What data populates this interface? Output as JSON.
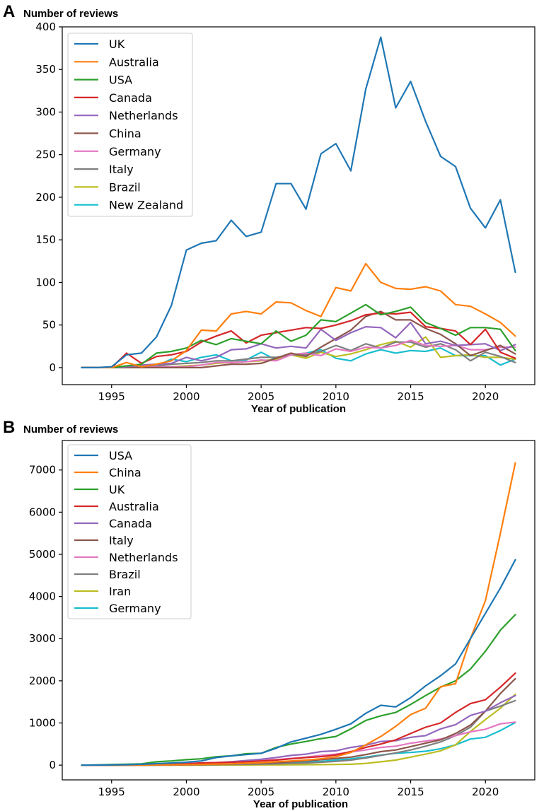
{
  "chart_data": [
    {
      "type": "line",
      "panel_letter": "A",
      "title": "",
      "ylabel": "Number of reviews",
      "xlabel": "Year of publication",
      "xlim": [
        1991.7,
        2023.3
      ],
      "ylim": [
        -20,
        400
      ],
      "xticks": [
        1995,
        2000,
        2005,
        2010,
        2015,
        2020
      ],
      "yticks": [
        0,
        50,
        100,
        150,
        200,
        250,
        300,
        350,
        400
      ],
      "legend_position": "top-left",
      "x": [
        1993,
        1994,
        1995,
        1996,
        1997,
        1998,
        1999,
        2000,
        2001,
        2002,
        2003,
        2004,
        2005,
        2006,
        2007,
        2008,
        2009,
        2010,
        2011,
        2012,
        2013,
        2014,
        2015,
        2016,
        2017,
        2018,
        2019,
        2020,
        2021,
        2022
      ],
      "series": [
        {
          "name": "UK",
          "color": "#1f77b4",
          "values": [
            0,
            0,
            1,
            15,
            17,
            36,
            73,
            138,
            146,
            149,
            173,
            154,
            159,
            216,
            216,
            186,
            251,
            263,
            231,
            327,
            388,
            305,
            336,
            289,
            248,
            236,
            187,
            164,
            197,
            112
          ]
        },
        {
          "name": "Australia",
          "color": "#ff7f0e",
          "values": [
            0,
            0,
            0,
            6,
            1,
            4,
            8,
            20,
            44,
            43,
            63,
            66,
            63,
            77,
            76,
            67,
            60,
            94,
            90,
            122,
            100,
            93,
            92,
            95,
            90,
            74,
            72,
            63,
            53,
            37
          ]
        },
        {
          "name": "USA",
          "color": "#2ca02c",
          "values": [
            0,
            0,
            0,
            2,
            4,
            17,
            19,
            23,
            32,
            27,
            34,
            31,
            28,
            43,
            31,
            38,
            56,
            54,
            64,
            74,
            62,
            66,
            71,
            53,
            46,
            38,
            47,
            47,
            45,
            20
          ]
        },
        {
          "name": "Canada",
          "color": "#d62728",
          "values": [
            0,
            0,
            0,
            17,
            5,
            13,
            15,
            19,
            30,
            37,
            43,
            29,
            38,
            41,
            44,
            47,
            46,
            50,
            55,
            62,
            64,
            63,
            65,
            48,
            46,
            43,
            27,
            45,
            18,
            11
          ]
        },
        {
          "name": "Netherlands",
          "color": "#9467bd",
          "values": [
            0,
            0,
            0,
            1,
            3,
            4,
            5,
            12,
            8,
            12,
            21,
            22,
            28,
            23,
            25,
            23,
            45,
            32,
            41,
            48,
            47,
            35,
            53,
            28,
            31,
            26,
            27,
            28,
            20,
            27
          ]
        },
        {
          "name": "China",
          "color": "#8c564b",
          "values": [
            0,
            0,
            0,
            0,
            0,
            0,
            0,
            0,
            0,
            2,
            4,
            4,
            5,
            11,
            17,
            13,
            24,
            34,
            44,
            60,
            66,
            56,
            56,
            46,
            39,
            28,
            14,
            20,
            26,
            16
          ]
        },
        {
          "name": "Germany",
          "color": "#e377c2",
          "values": [
            0,
            0,
            0,
            0,
            0,
            1,
            1,
            1,
            3,
            6,
            6,
            7,
            9,
            8,
            15,
            17,
            14,
            22,
            19,
            24,
            23,
            26,
            32,
            26,
            25,
            26,
            21,
            21,
            24,
            24
          ]
        },
        {
          "name": "Italy",
          "color": "#7f7f7f",
          "values": [
            0,
            0,
            0,
            0,
            1,
            2,
            4,
            5,
            6,
            8,
            8,
            10,
            12,
            12,
            15,
            15,
            19,
            26,
            20,
            28,
            23,
            30,
            30,
            24,
            28,
            21,
            8,
            18,
            13,
            6
          ]
        },
        {
          "name": "Brazil",
          "color": "#bcbd22",
          "values": [
            0,
            0,
            0,
            0,
            0,
            0,
            1,
            2,
            3,
            5,
            6,
            7,
            8,
            10,
            15,
            11,
            18,
            13,
            16,
            21,
            27,
            31,
            24,
            36,
            12,
            14,
            15,
            12,
            12,
            10
          ]
        },
        {
          "name": "New Zealand",
          "color": "#17becf",
          "values": [
            0,
            0,
            0,
            0,
            0,
            2,
            10,
            7,
            12,
            15,
            8,
            9,
            18,
            9,
            15,
            17,
            21,
            11,
            8,
            16,
            21,
            17,
            20,
            19,
            23,
            14,
            14,
            14,
            3,
            10
          ]
        }
      ]
    },
    {
      "type": "line",
      "panel_letter": "B",
      "title": "",
      "ylabel": "Number of reviews",
      "xlabel": "Year of publication",
      "xlim": [
        1991.7,
        2023.3
      ],
      "ylim": [
        -350,
        7700
      ],
      "xticks": [
        1995,
        2000,
        2005,
        2010,
        2015,
        2020
      ],
      "yticks": [
        0,
        1000,
        2000,
        3000,
        4000,
        5000,
        6000,
        7000
      ],
      "legend_position": "top-left",
      "x": [
        1993,
        1994,
        1995,
        1996,
        1997,
        1998,
        1999,
        2000,
        2001,
        2002,
        2003,
        2004,
        2005,
        2006,
        2007,
        2008,
        2009,
        2010,
        2011,
        2012,
        2013,
        2014,
        2015,
        2016,
        2017,
        2018,
        2019,
        2020,
        2021,
        2022
      ],
      "series": [
        {
          "name": "USA",
          "color": "#1f77b4",
          "values": [
            0,
            2,
            5,
            10,
            20,
            35,
            50,
            70,
            100,
            180,
            220,
            250,
            280,
            400,
            550,
            640,
            730,
            850,
            980,
            1230,
            1420,
            1380,
            1600,
            1880,
            2120,
            2400,
            3000,
            3600,
            4200,
            4870
          ]
        },
        {
          "name": "China",
          "color": "#ff7f0e",
          "values": [
            0,
            0,
            0,
            0,
            2,
            5,
            8,
            12,
            18,
            25,
            30,
            45,
            60,
            80,
            100,
            120,
            150,
            200,
            300,
            480,
            680,
            920,
            1200,
            1350,
            1860,
            1930,
            3000,
            3900,
            5500,
            7170
          ]
        },
        {
          "name": "UK",
          "color": "#2ca02c",
          "values": [
            0,
            5,
            15,
            20,
            30,
            80,
            100,
            130,
            150,
            200,
            220,
            270,
            280,
            420,
            500,
            560,
            630,
            680,
            860,
            1060,
            1170,
            1250,
            1440,
            1650,
            1850,
            2000,
            2280,
            2700,
            3200,
            3570
          ]
        },
        {
          "name": "Australia",
          "color": "#d62728",
          "values": [
            0,
            1,
            3,
            6,
            8,
            12,
            20,
            30,
            50,
            60,
            70,
            80,
            100,
            120,
            150,
            180,
            200,
            240,
            320,
            420,
            500,
            600,
            750,
            900,
            1000,
            1250,
            1460,
            1550,
            1850,
            2180
          ]
        },
        {
          "name": "Canada",
          "color": "#9467bd",
          "values": [
            0,
            0,
            2,
            4,
            10,
            20,
            30,
            40,
            50,
            60,
            80,
            110,
            140,
            180,
            230,
            260,
            320,
            340,
            420,
            470,
            560,
            580,
            660,
            700,
            860,
            960,
            1180,
            1280,
            1480,
            1650
          ]
        },
        {
          "name": "Italy",
          "color": "#8c564b",
          "values": [
            0,
            0,
            0,
            0,
            1,
            3,
            5,
            8,
            12,
            20,
            30,
            40,
            50,
            60,
            80,
            100,
            130,
            160,
            190,
            250,
            320,
            360,
            440,
            520,
            600,
            750,
            950,
            1280,
            1700,
            2050
          ]
        },
        {
          "name": "Netherlands",
          "color": "#e377c2",
          "values": [
            0,
            0,
            1,
            3,
            8,
            15,
            25,
            35,
            50,
            60,
            70,
            90,
            110,
            130,
            160,
            190,
            230,
            260,
            310,
            360,
            420,
            450,
            520,
            570,
            620,
            700,
            790,
            850,
            980,
            1020
          ]
        },
        {
          "name": "Brazil",
          "color": "#7f7f7f",
          "values": [
            0,
            0,
            0,
            0,
            1,
            2,
            3,
            5,
            8,
            12,
            15,
            20,
            25,
            30,
            40,
            50,
            70,
            90,
            120,
            170,
            230,
            290,
            360,
            450,
            550,
            700,
            900,
            1280,
            1400,
            1530
          ]
        },
        {
          "name": "Iran",
          "color": "#bcbd22",
          "values": [
            0,
            0,
            0,
            0,
            0,
            0,
            0,
            0,
            1,
            2,
            3,
            4,
            5,
            6,
            8,
            10,
            12,
            15,
            20,
            40,
            80,
            120,
            190,
            260,
            340,
            480,
            800,
            1080,
            1350,
            1680
          ]
        },
        {
          "name": "Germany",
          "color": "#17becf",
          "values": [
            0,
            0,
            0,
            1,
            2,
            3,
            5,
            8,
            10,
            15,
            20,
            30,
            40,
            50,
            60,
            80,
            90,
            120,
            150,
            190,
            240,
            280,
            300,
            330,
            390,
            480,
            620,
            660,
            820,
            1010
          ]
        }
      ]
    }
  ]
}
